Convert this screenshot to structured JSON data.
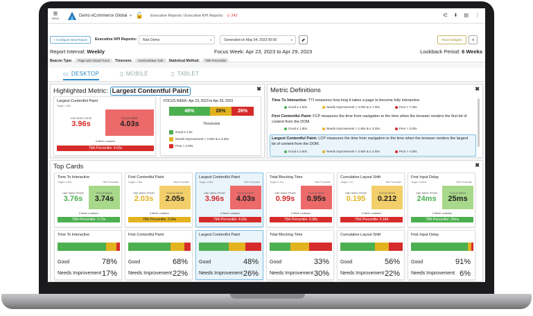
{
  "topbar": {
    "menu_label": "MENU",
    "org": "Demo eCommerce Global",
    "breadcrumb": "Executive Reports / Executive KPI Reports",
    "alert": "242"
  },
  "controls": {
    "configure_button": "+ Configure New Report",
    "report_label": "Executive KPI Reports:",
    "report_value": "Nick Demo",
    "generated_value": "Generated on May 04, 2023 00:00",
    "reset_button": "Reset Widgets"
  },
  "summary": {
    "interval_label": "Report Interval:",
    "interval_value": "Weekly",
    "focus_label": "Focus Week:",
    "focus_value": "Apr 23, 2023 to Apr 29, 2023",
    "lookback_label": "Lookback Period:",
    "lookback_value": "6 Weeks",
    "beacon_label": "Beacon Type:",
    "beacon_value": "Page and Virtual Turns",
    "tz_label": "Timezone:",
    "tz_value": "America/New York",
    "stat_label": "Statistical Method:",
    "stat_value": "75th Percentile"
  },
  "tabs": [
    "DESKTOP",
    "MOBILE",
    "TABLET"
  ],
  "colors": {
    "good": "#4caf50",
    "needs": "#e3b21f",
    "poor": "#d62b2b",
    "accent": "#2a8ac8",
    "good_bg": "#a8d88a",
    "needs_bg": "#f2cf6a",
    "poor_bg": "#ec6a6a"
  },
  "highlighted": {
    "title_prefix": "Highlighted Metric:",
    "metric": "Largest Contentful Paint",
    "card_title": "Largest Contentful Paint",
    "target": "Target: 2.50s",
    "method": "75th Percentile",
    "prior_label": "ONE WEEK PRIOR",
    "prior_value": "3.96s",
    "focus_label": "FOCUS WEEK",
    "focus_value": "4.03s",
    "lookback_label": "6 Week Lookback",
    "percentile_bar": "75th Percentile: 4.03s",
    "focus_header": "FOCUS WEEK: Apr 23, 2023 to Apr 29, 2023",
    "split": [
      {
        "label": "48%",
        "value": 48,
        "color": "#4caf50"
      },
      {
        "label": "26%",
        "value": 26,
        "color": "#e3b21f"
      },
      {
        "label": "26%",
        "value": 26,
        "color": "#d62b2b"
      }
    ],
    "thresholds_title": "Thresholds",
    "thresholds": [
      {
        "label": "Good ≤ 2.5s",
        "color": "#4caf50"
      },
      {
        "label": "Needs Improvement > 2.50s & ≤ 4.00s",
        "color": "#e3b21f"
      },
      {
        "label": "Poor > 4.00s",
        "color": "#d62b2b"
      }
    ]
  },
  "definitions": {
    "title": "Metric Definitions",
    "items": [
      {
        "name": "Time To Interactive:",
        "text": "TTI measures how long it takes a page to become fully interactive.",
        "good": "Good ≤ 4.00s",
        "needs": "Needs Improvement > 4.00s & ≤ 7.00s",
        "poor": "Poor > 7.00s"
      },
      {
        "name": "First Contentful Paint:",
        "text": "FCP measures the time from navigation to the time when the browser renders the first bit of content from the DOM.",
        "good": "Good ≤ 1.80s",
        "needs": "Needs Improvement > 1.80s & ≤ 3.00s",
        "poor": "Poor > 3.00s"
      },
      {
        "name": "Largest Contentful Paint:",
        "text": "LCP measures the time from navigation to the time when the browser renders the largest bit of content from the DOM.",
        "good": "Good ≤ 2.50s",
        "needs": "Needs Improvement > 2.50s & ≤ 4.00s",
        "poor": "Poor > 4.00s"
      }
    ]
  },
  "top_cards": {
    "title": "Top Cards",
    "prior_label": "ONE WEEK PRIOR",
    "focus_label": "FOCUS WEEK",
    "lookback_label": "6 Week Lookback",
    "method": "75th Percentile",
    "cards": [
      {
        "title": "Time To Interactive",
        "target": "Target: 4.00s",
        "prior": "3.76s",
        "focus": "3.74s",
        "status": "good",
        "bar": "75th Percentile: 3.73s",
        "bar_status": "good",
        "selected": false
      },
      {
        "title": "First Contentful Paint",
        "target": "Target: 1.80s",
        "prior": "2.03s",
        "focus": "2.05s",
        "status": "needs",
        "bar": "75th Percentile: 2.04s",
        "bar_status": "needs",
        "selected": false
      },
      {
        "title": "Largest Contentful Paint",
        "target": "Target: 2.50s",
        "prior": "3.96s",
        "focus": "4.03s",
        "status": "poor",
        "bar": "75th Percentile: 4.03s",
        "bar_status": "poor",
        "selected": true
      },
      {
        "title": "Total Blocking Time",
        "target": "Target: 0.20s",
        "prior": "0.99s",
        "focus": "0.95s",
        "status": "poor",
        "bar": "75th Percentile: 0.98s",
        "bar_status": "poor",
        "selected": false
      },
      {
        "title": "Cumulative Layout Shift",
        "target": "Target: 0.10",
        "prior": "0.195",
        "focus": "0.212",
        "status": "needs",
        "bar": "75th Percentile: 0.184",
        "bar_status": "poor",
        "selected": false
      },
      {
        "title": "First Input Delay",
        "target": "Target: 100ms",
        "prior": "24ms",
        "focus": "25ms",
        "status": "good",
        "bar": "75th Percentile: 25ms",
        "bar_status": "good",
        "selected": false
      }
    ],
    "dist_cards": [
      {
        "title": "Time To Interactive",
        "good": 78,
        "needs": 17,
        "poor": 5,
        "good_pct": "78%",
        "needs_pct": "17%",
        "selected": false
      },
      {
        "title": "First Contentful Paint",
        "good": 68,
        "needs": 22,
        "poor": 10,
        "good_pct": "68%",
        "needs_pct": "22%",
        "selected": false
      },
      {
        "title": "Largest Contentful Paint",
        "good": 48,
        "needs": 26,
        "poor": 26,
        "good_pct": "48%",
        "needs_pct": "26%",
        "selected": true
      },
      {
        "title": "Total Blocking Time",
        "good": 33,
        "needs": 30,
        "poor": 37,
        "good_pct": "33%",
        "needs_pct": "30%",
        "selected": false
      },
      {
        "title": "Cumulative Layout Shift",
        "good": 56,
        "needs": 22,
        "poor": 22,
        "good_pct": "56%",
        "needs_pct": "22%",
        "selected": false
      },
      {
        "title": "First Input Delay",
        "good": 91,
        "needs": 6,
        "poor": 3,
        "good_pct": "91%",
        "needs_pct": "6%",
        "selected": false
      }
    ],
    "good_label": "Good",
    "needs_label": "Needs Improvement"
  }
}
